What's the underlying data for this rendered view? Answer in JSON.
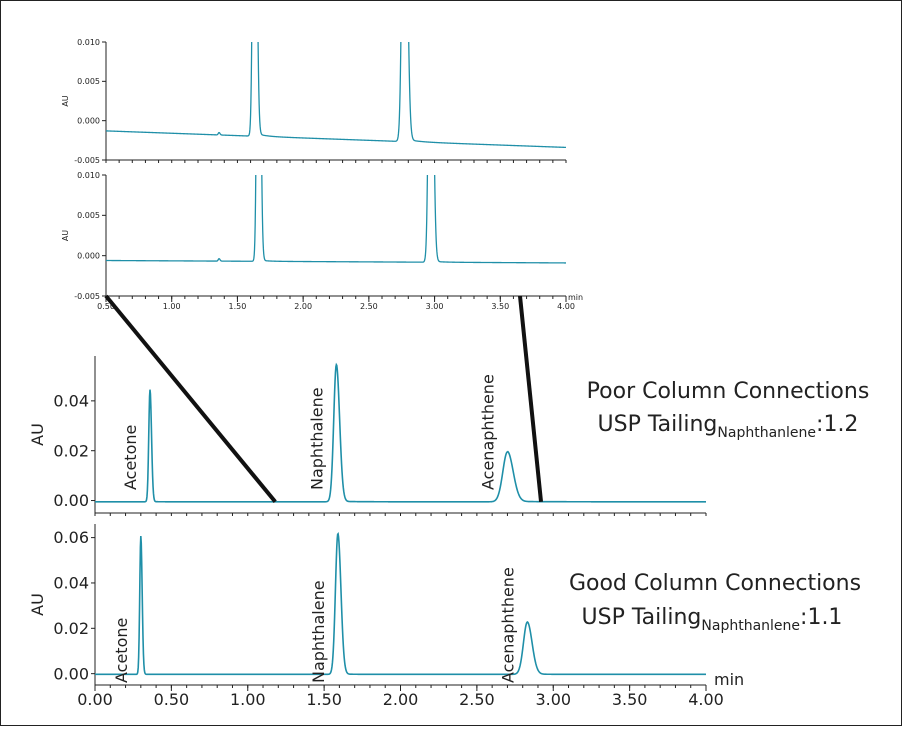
{
  "colors": {
    "trace": "#1f8fa8",
    "axis": "#222222",
    "zoom_line": "#111111"
  },
  "chart_data": [
    {
      "id": "inset-top",
      "type": "line",
      "ylabel": "AU",
      "xlim": [
        0.5,
        4.0
      ],
      "ylim": [
        -0.005,
        0.01
      ],
      "yticks": [
        "0.010",
        "0.005",
        "0.000",
        "-0.005"
      ],
      "baseline": [
        [
          0.5,
          -0.0013
        ],
        [
          4.0,
          -0.0034
        ]
      ],
      "peaks": [
        {
          "x": 1.63,
          "h": 0.06,
          "w": 0.012,
          "tail": 0.02
        },
        {
          "x": 2.77,
          "h": 0.05,
          "w": 0.016,
          "tail": 0.02
        },
        {
          "x": 1.36,
          "h": 0.0003,
          "w": 0.006,
          "tail": 0
        }
      ]
    },
    {
      "id": "inset-bottom",
      "type": "line",
      "ylabel": "AU",
      "xlim": [
        0.5,
        4.0
      ],
      "ylim": [
        -0.005,
        0.01
      ],
      "yticks": [
        "0.010",
        "0.005",
        "0.000",
        "-0.005"
      ],
      "xticks": [
        "0.50",
        "1.00",
        "1.50",
        "2.00",
        "2.50",
        "3.00",
        "3.50",
        "4.00"
      ],
      "xunit": "min",
      "baseline": [
        [
          0.5,
          -0.0006
        ],
        [
          4.0,
          -0.0009
        ]
      ],
      "peaks": [
        {
          "x": 1.66,
          "h": 0.06,
          "w": 0.011,
          "tail": 0.008
        },
        {
          "x": 2.97,
          "h": 0.05,
          "w": 0.014,
          "tail": 0.008
        },
        {
          "x": 1.36,
          "h": 0.0003,
          "w": 0.006,
          "tail": 0
        }
      ]
    },
    {
      "id": "poor",
      "type": "line",
      "ylabel": "AU",
      "xlim": [
        0.0,
        4.0
      ],
      "ylim": [
        -0.005,
        0.058
      ],
      "yticks": [
        "0.04",
        "0.02",
        "0.00"
      ],
      "ytick_values": [
        0.04,
        0.02,
        0.0
      ],
      "baseline": [
        [
          0.0,
          -0.0005
        ],
        [
          4.0,
          -0.0005
        ]
      ],
      "peaks": [
        {
          "x": 0.36,
          "h": 0.045,
          "w": 0.008,
          "tail": 0.004,
          "label": "Acetone"
        },
        {
          "x": 1.58,
          "h": 0.055,
          "w": 0.017,
          "tail": 0.012,
          "label": "Naphthalene"
        },
        {
          "x": 2.7,
          "h": 0.02,
          "w": 0.03,
          "tail": 0.025,
          "label": "Acenaphthene"
        }
      ],
      "annotation": {
        "title": "Poor Column Connections",
        "tailing_prefix": "USP Tailing",
        "tailing_sub": "Naphthanlene",
        "tailing_value": ":1.2"
      }
    },
    {
      "id": "good",
      "type": "line",
      "ylabel": "AU",
      "xlim": [
        0.0,
        4.0
      ],
      "ylim": [
        -0.005,
        0.066
      ],
      "yticks": [
        "0.06",
        "0.04",
        "0.02",
        "0.00"
      ],
      "ytick_values": [
        0.06,
        0.04,
        0.02,
        0.0
      ],
      "xticks": [
        "0.00",
        "0.50",
        "1.00",
        "1.50",
        "2.00",
        "2.50",
        "3.00",
        "3.50",
        "4.00"
      ],
      "xunit": "min",
      "baseline": [
        [
          0.0,
          -0.0003
        ],
        [
          4.0,
          -0.0003
        ]
      ],
      "peaks": [
        {
          "x": 0.3,
          "h": 0.061,
          "w": 0.007,
          "tail": 0.002,
          "label": "Acetone"
        },
        {
          "x": 1.59,
          "h": 0.062,
          "w": 0.016,
          "tail": 0.006,
          "label": "Naphthalene"
        },
        {
          "x": 2.83,
          "h": 0.023,
          "w": 0.025,
          "tail": 0.012,
          "label": "Acenaphthene"
        }
      ],
      "annotation": {
        "title": "Good Column Connections",
        "tailing_prefix": "USP Tailing",
        "tailing_sub": "Naphthanlene",
        "tailing_value": ":1.1"
      }
    }
  ],
  "zoom_lines": [
    {
      "from": [
        0.5,
        -0.005
      ],
      "to": [
        1.18,
        -0.0005
      ]
    },
    {
      "from": [
        3.65,
        -0.005
      ],
      "to": [
        2.92,
        -0.0005
      ]
    }
  ]
}
